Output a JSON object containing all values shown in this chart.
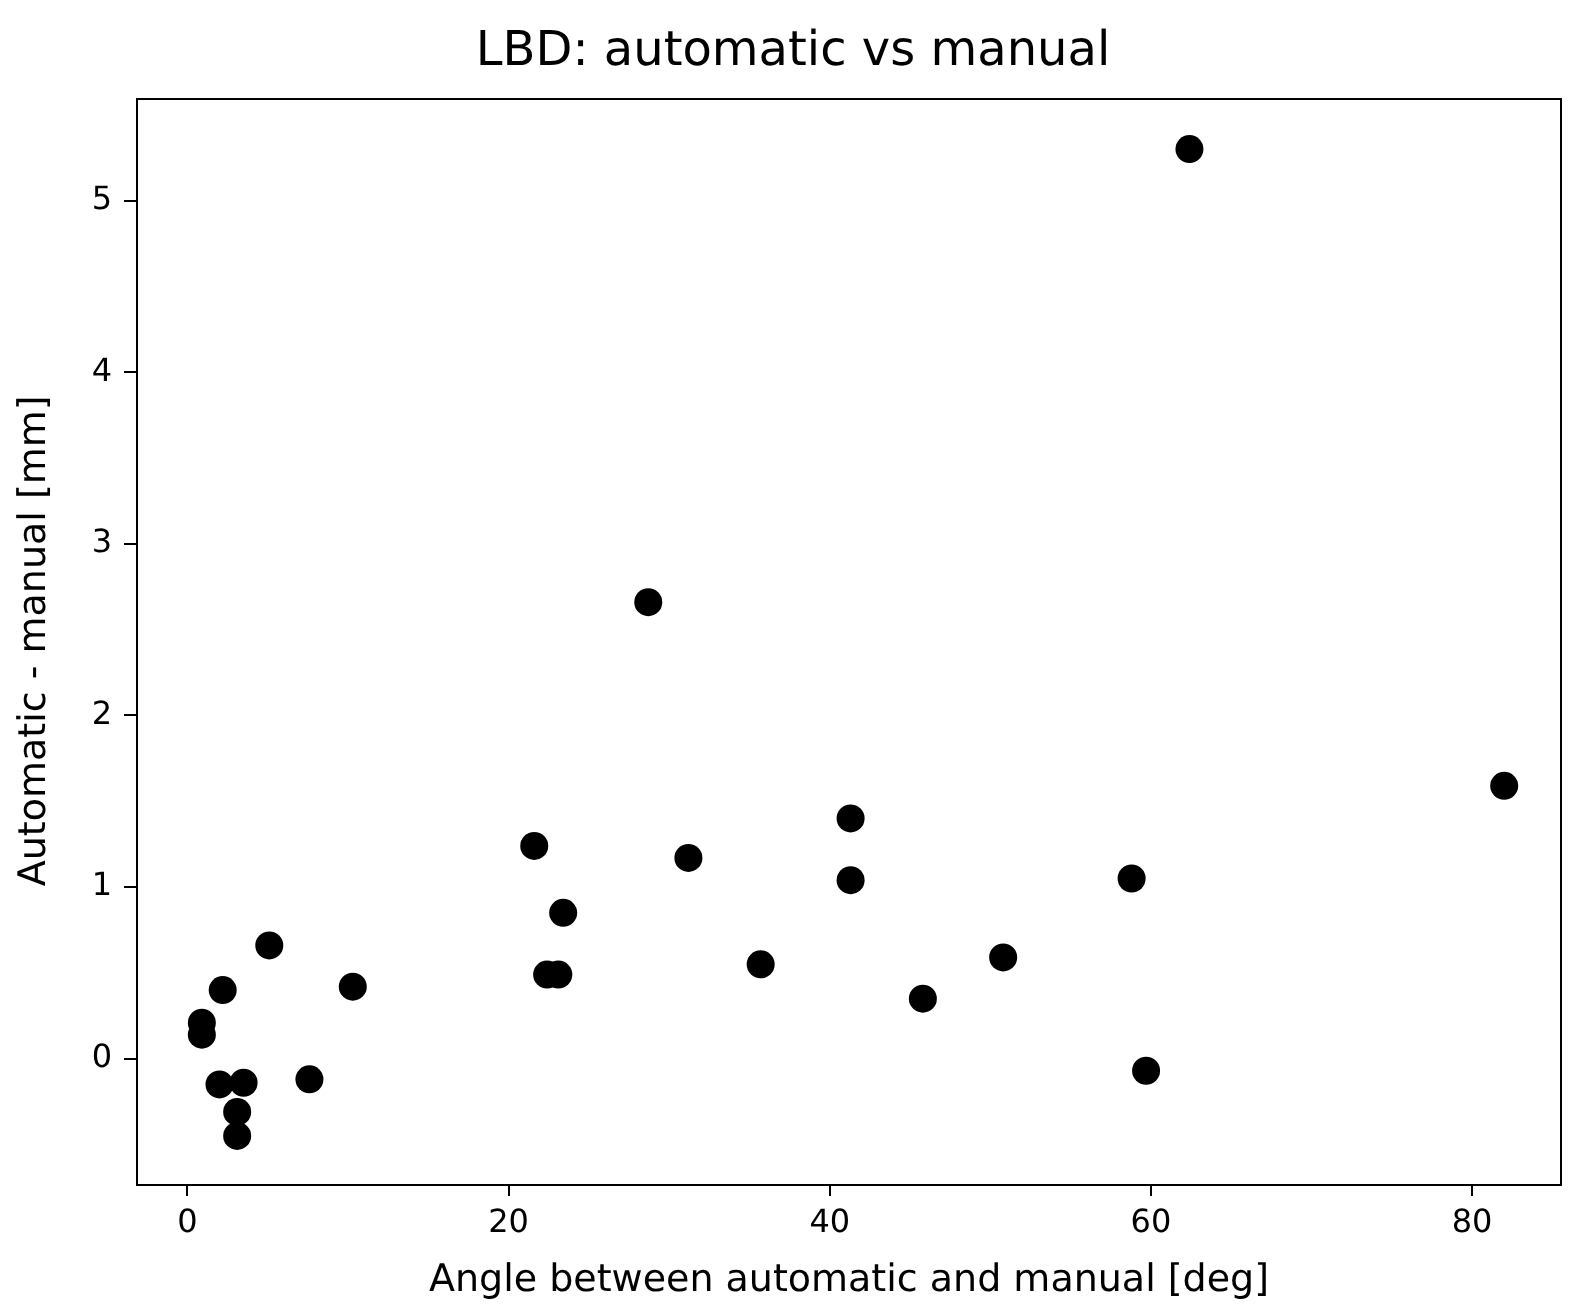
{
  "chart_data": {
    "type": "scatter",
    "title": "LBD: automatic vs manual",
    "xlabel": "Angle between automatic and manual [deg]",
    "ylabel": "Automatic - manual [mm]",
    "x": [
      0.9,
      0.9,
      2.2,
      2.0,
      3.5,
      3.1,
      3.1,
      5.1,
      7.6,
      10.3,
      21.6,
      22.4,
      23.1,
      23.4,
      28.7,
      31.2,
      35.7,
      41.3,
      41.3,
      45.8,
      50.8,
      58.8,
      59.7,
      62.4,
      82.0
    ],
    "values": [
      0.21,
      0.14,
      0.4,
      -0.15,
      -0.14,
      -0.31,
      -0.45,
      0.66,
      -0.12,
      0.42,
      1.24,
      0.49,
      0.49,
      0.85,
      2.66,
      1.17,
      0.55,
      1.4,
      1.04,
      0.35,
      0.59,
      1.05,
      -0.07,
      5.3,
      1.59
    ],
    "color": "#000000",
    "marker": "circle",
    "grid": false,
    "legend": false,
    "xlim": [
      -3.2,
      85.6
    ],
    "ylim": [
      -0.73,
      5.6
    ],
    "xticks": [
      0,
      20,
      40,
      60,
      80
    ],
    "yticks": [
      0,
      1,
      2,
      3,
      4,
      5
    ]
  }
}
